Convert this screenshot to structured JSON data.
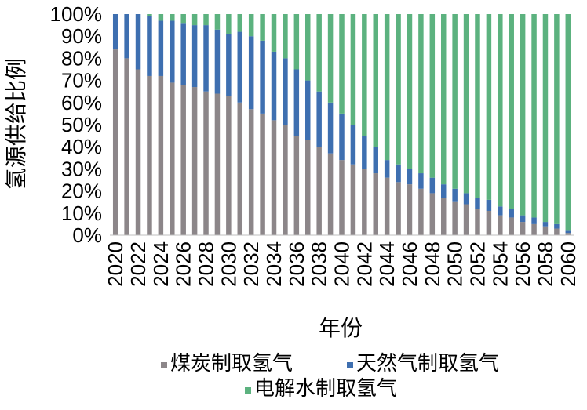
{
  "chart_data": {
    "type": "bar",
    "stacked": true,
    "ylabel": "氢源供给比例",
    "xlabel": "年份",
    "ylim": [
      0,
      100
    ],
    "yticks": [
      "0%",
      "10%",
      "20%",
      "30%",
      "40%",
      "50%",
      "60%",
      "70%",
      "80%",
      "90%",
      "100%"
    ],
    "categories": [
      "2020",
      "2021",
      "2022",
      "2023",
      "2024",
      "2025",
      "2026",
      "2027",
      "2028",
      "2029",
      "2030",
      "2031",
      "2032",
      "2033",
      "2034",
      "2035",
      "2036",
      "2037",
      "2038",
      "2039",
      "2040",
      "2041",
      "2042",
      "2043",
      "2044",
      "2045",
      "2046",
      "2047",
      "2048",
      "2049",
      "2050",
      "2051",
      "2052",
      "2053",
      "2054",
      "2055",
      "2056",
      "2057",
      "2058",
      "2059",
      "2060"
    ],
    "xtick_labels": [
      "2020",
      "2022",
      "2024",
      "2026",
      "2028",
      "2030",
      "2032",
      "2034",
      "2036",
      "2038",
      "2040",
      "2042",
      "2044",
      "2046",
      "2048",
      "2050",
      "2052",
      "2054",
      "2056",
      "2058",
      "2060"
    ],
    "grid": false,
    "legend_position": "bottom",
    "series": [
      {
        "name": "煤炭制取氢气",
        "color": "#8c8689",
        "values": [
          84,
          80,
          75,
          72,
          72,
          69,
          68,
          67,
          65,
          64,
          63,
          60,
          57,
          55,
          52,
          50,
          45,
          43,
          40,
          37,
          34,
          32,
          30,
          28,
          26,
          24,
          23,
          21,
          19,
          17,
          15,
          14,
          12,
          11,
          9,
          8,
          6,
          5,
          4,
          3,
          1
        ]
      },
      {
        "name": "天然气制取氢气",
        "color": "#3e6fb0",
        "values": [
          16,
          20,
          25,
          27,
          25,
          28,
          28,
          28,
          30,
          29,
          28,
          32,
          33,
          33,
          31,
          30,
          30,
          27,
          25,
          23,
          21,
          18,
          15,
          12,
          8,
          8,
          7,
          7,
          7,
          6,
          6,
          5,
          5,
          5,
          4,
          4,
          3,
          3,
          2,
          2,
          1
        ]
      },
      {
        "name": "电解水制取氢气",
        "color": "#5cb27f",
        "values": [
          0,
          0,
          0,
          1,
          3,
          3,
          4,
          5,
          5,
          7,
          9,
          8,
          10,
          12,
          17,
          20,
          25,
          30,
          35,
          40,
          45,
          50,
          55,
          60,
          66,
          68,
          70,
          72,
          74,
          77,
          79,
          81,
          83,
          84,
          87,
          88,
          91,
          92,
          94,
          95,
          98
        ]
      }
    ]
  }
}
